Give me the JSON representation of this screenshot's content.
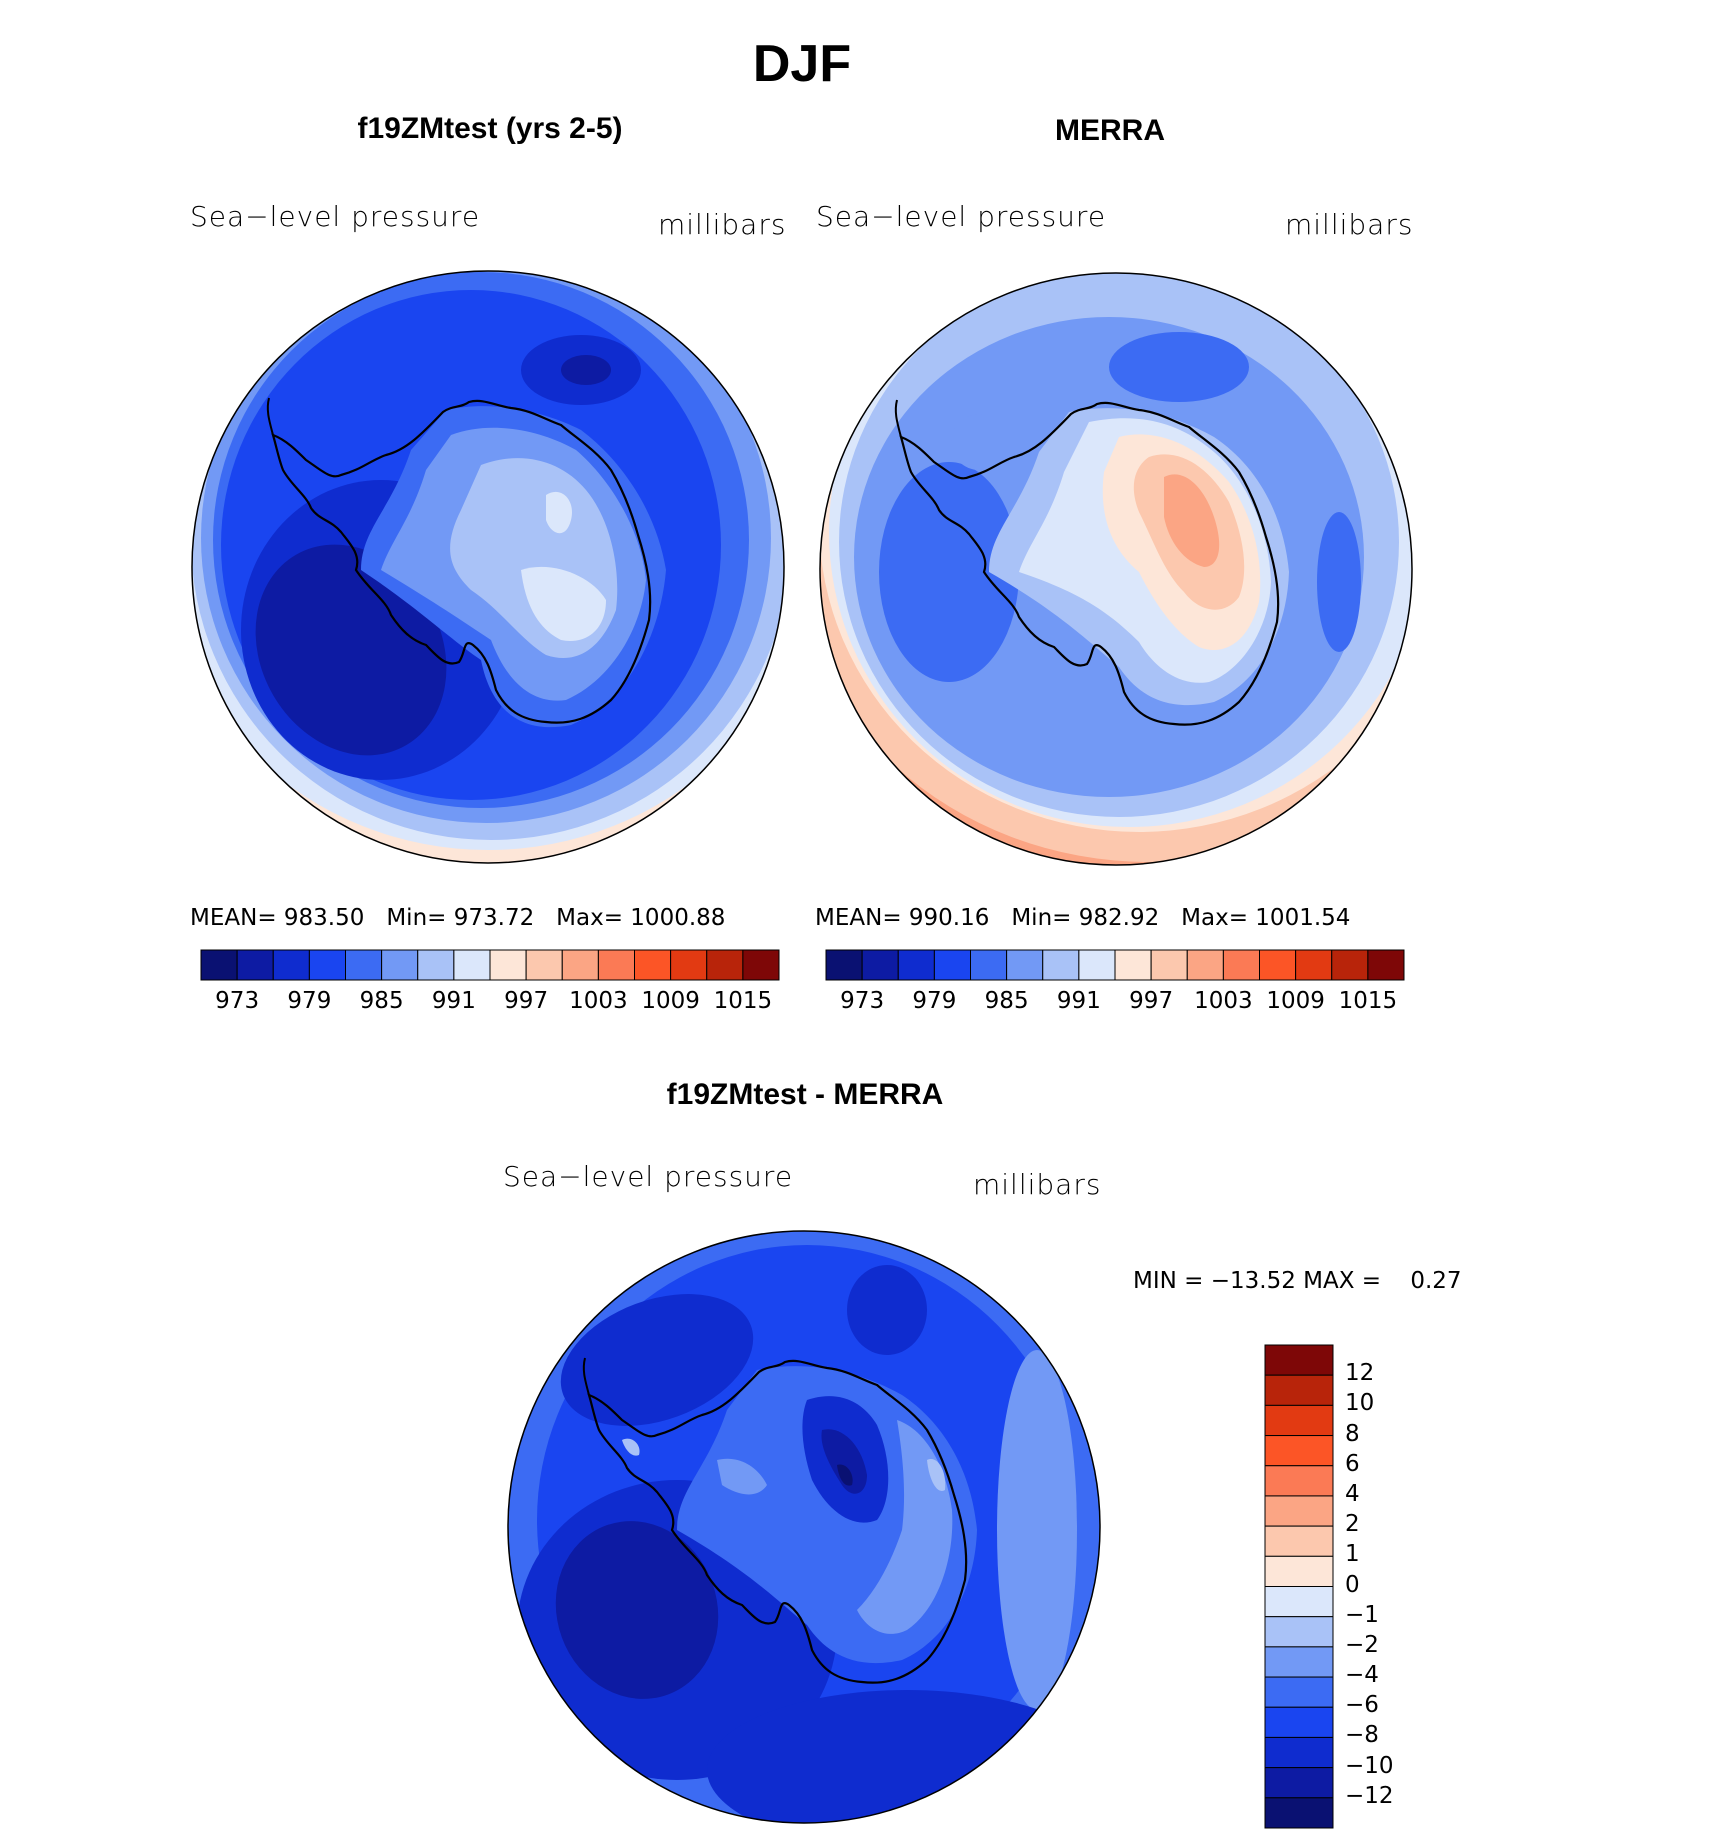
{
  "title": "DJF",
  "panels": [
    {
      "title": "f19ZMtest (yrs 2-5)",
      "variable": "Sea−level pressure",
      "units": "millibars",
      "stats": {
        "mean_label": "MEAN=",
        "mean": "983.50",
        "min_label": "Min=",
        "min": "973.72",
        "max_label": "Max=",
        "max": "1000.88"
      }
    },
    {
      "title": "MERRA",
      "variable": "Sea−level pressure",
      "units": "millibars",
      "stats": {
        "mean_label": "MEAN=",
        "mean": "990.16",
        "min_label": "Min=",
        "min": "982.92",
        "max_label": "Max=",
        "max": "1001.54"
      }
    }
  ],
  "colorbar_main": {
    "colors": [
      "#0a1172",
      "#0d1ba3",
      "#0f2ccf",
      "#1a45f0",
      "#3c6bf3",
      "#7299f5",
      "#a9c2f7",
      "#dbe7fb",
      "#fde6d8",
      "#fcc8ae",
      "#fba584",
      "#fb7a55",
      "#fc5526",
      "#e23a12",
      "#b8240a",
      "#7e0707"
    ],
    "tick_labels": [
      "973",
      "979",
      "985",
      "991",
      "997",
      "1003",
      "1009",
      "1015"
    ]
  },
  "diff_panel": {
    "title": "f19ZMtest - MERRA",
    "variable": "Sea−level pressure",
    "units": "millibars",
    "min_max": "MIN = −13.52 MAX =    0.27",
    "colorbar": {
      "colors": [
        "#7e0707",
        "#b8240a",
        "#e23a12",
        "#fc5526",
        "#fb7a55",
        "#fba584",
        "#fcc8ae",
        "#fde6d8",
        "#dbe7fb",
        "#a9c2f7",
        "#7299f5",
        "#3c6bf3",
        "#1a45f0",
        "#0f2ccf",
        "#0d1ba3",
        "#0a1172"
      ],
      "tick_labels": [
        "12",
        "10",
        "8",
        "6",
        "4",
        "2",
        "1",
        "0",
        "−1",
        "−2",
        "−4",
        "−6",
        "−8",
        "−10",
        "−12"
      ]
    }
  }
}
